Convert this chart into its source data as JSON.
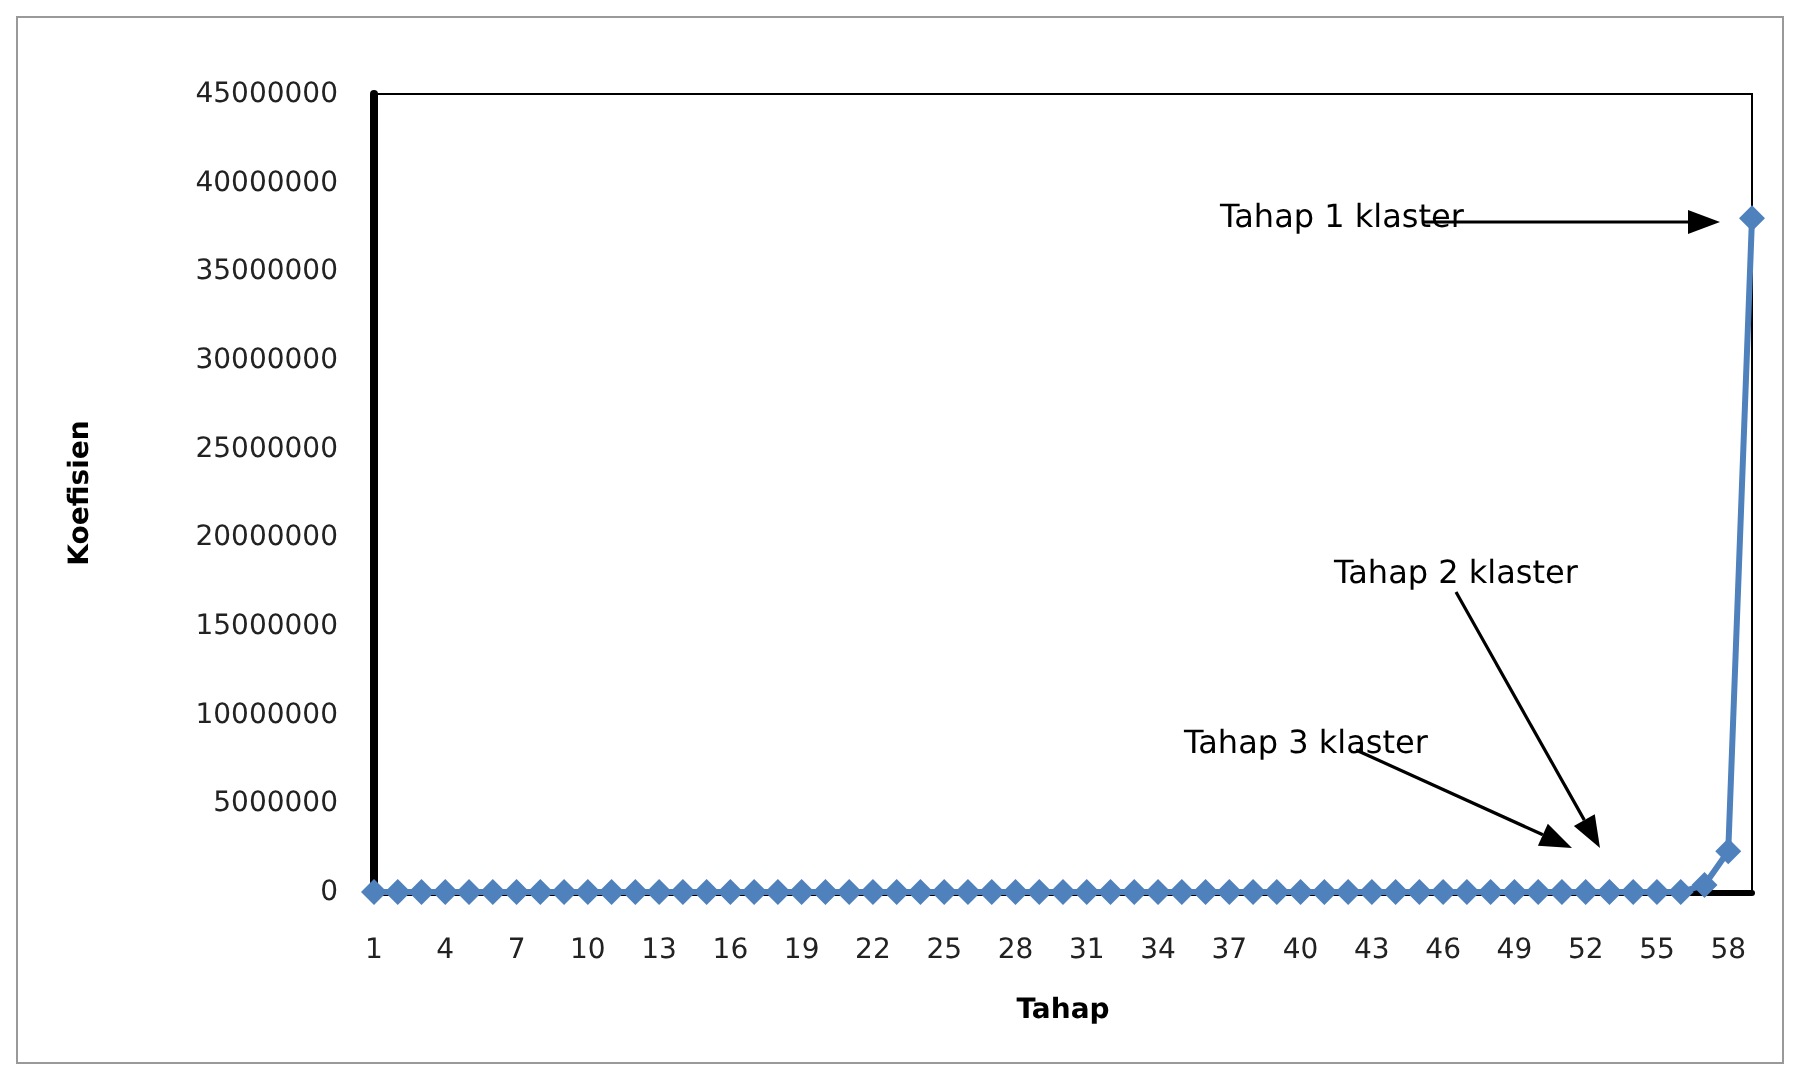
{
  "chart_data": {
    "type": "line",
    "xlabel": "Tahap",
    "ylabel": "Koefisien",
    "categories": [
      "1",
      null,
      null,
      "4",
      null,
      null,
      "7",
      null,
      null,
      "10",
      null,
      null,
      "13",
      null,
      null,
      "16",
      null,
      null,
      "19",
      null,
      null,
      "22",
      null,
      null,
      "25",
      null,
      null,
      "28",
      null,
      null,
      "31",
      null,
      null,
      "34",
      null,
      null,
      "37",
      null,
      null,
      "40",
      null,
      null,
      "43",
      null,
      null,
      "46",
      null,
      null,
      "49",
      null,
      null,
      "52",
      null,
      null,
      "55",
      null,
      null,
      "58",
      null
    ],
    "series": [
      {
        "color": "#4f81bd",
        "values": [
          0,
          0,
          0,
          0,
          0,
          0,
          0,
          0,
          0,
          0,
          0,
          0,
          0,
          0,
          0,
          0,
          0,
          0,
          0,
          0,
          0,
          0,
          0,
          0,
          0,
          0,
          0,
          0,
          0,
          0,
          0,
          0,
          0,
          0,
          0,
          0,
          0,
          0,
          0,
          0,
          0,
          0,
          0,
          0,
          0,
          0,
          0,
          0,
          0,
          0,
          0,
          0,
          0,
          0,
          0,
          0,
          400000,
          2300000,
          38000000
        ]
      }
    ],
    "ylim": [
      0,
      45000000
    ],
    "yticks": [
      0,
      5000000,
      10000000,
      15000000,
      20000000,
      25000000,
      30000000,
      35000000,
      40000000,
      45000000
    ],
    "marker": "diamond",
    "grid": false,
    "annotations": [
      "Tahap 1 klaster",
      "Tahap 2 klaster",
      "Tahap 3 klaster"
    ]
  }
}
